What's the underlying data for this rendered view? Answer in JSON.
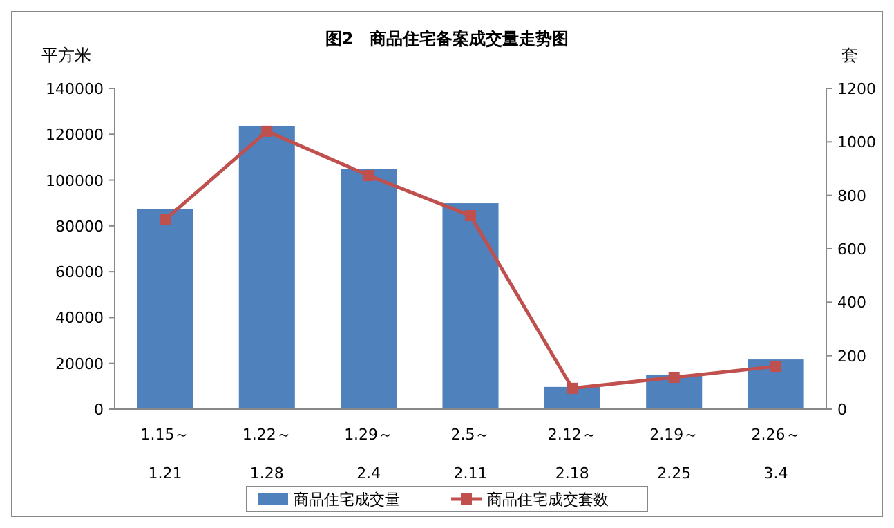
{
  "chart_data": {
    "type": "bar",
    "title": "图2　商品住宅备案成交量走势图",
    "ylabel": "平方米",
    "y2label": "套",
    "categories": [
      "1.15～\n1.21",
      "1.22～\n1.28",
      "1.29～\n2.4",
      "2.5～\n2.11",
      "2.12～\n2.18",
      "2.19～\n2.25",
      "2.26～\n3.4"
    ],
    "series": [
      {
        "name": "商品住宅成交量",
        "color": "#4f81bd",
        "values": [
          87500,
          123700,
          105000,
          89900,
          9700,
          15100,
          21700
        ]
      },
      {
        "name": "商品住宅成交套数",
        "color": "#c0504d",
        "type": "line",
        "axis": "y2",
        "marker": "square",
        "values": [
          709,
          1040,
          874,
          724,
          78,
          119,
          160
        ]
      }
    ],
    "ylim": [
      0,
      140000
    ],
    "yticks": [
      0,
      20000,
      40000,
      60000,
      80000,
      100000,
      120000,
      140000
    ],
    "y2lim": [
      0,
      1200
    ],
    "y2ticks": [
      0,
      200,
      400,
      600,
      800,
      1000,
      1200
    ],
    "grid": false,
    "legend": "bottom"
  }
}
